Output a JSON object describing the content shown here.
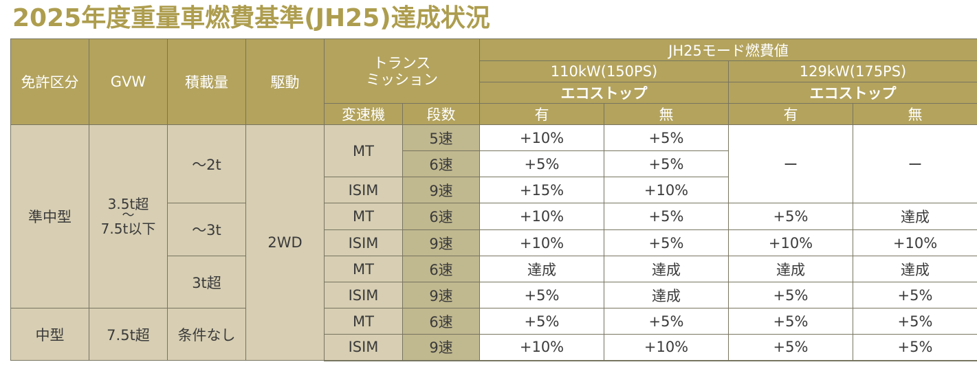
{
  "title": "2025年度重量車燃費基準(JH25)達成状況",
  "headers": {
    "license": "免許区分",
    "gvw": "GVW",
    "load": "積載量",
    "drive": "駆動",
    "transmission_line1": "トランス",
    "transmission_line2": "ミッション",
    "gearbox": "変速機",
    "gears": "段数",
    "fuel_group": "JH25モード燃費値",
    "engine1": "110kW(150PS)",
    "engine2": "129kW(175PS)",
    "ecostop": "エコストップ",
    "with": "有",
    "without": "無"
  },
  "groups": {
    "jun_chugata": "準中型",
    "chugata": "中型",
    "gvw_range_line1": "3.5t超",
    "gvw_range_tilde": "〜",
    "gvw_range_line2": "7.5t以下",
    "gvw_over": "7.5t超",
    "load_2t": "〜2t",
    "load_3t": "〜3t",
    "load_over3t": "3t超",
    "load_none": "条件なし",
    "drive": "2WD",
    "dash": "ー"
  },
  "rows": [
    {
      "trans": "MT",
      "gears": "5速",
      "e1_on": "+10%",
      "e1_off": "+5%",
      "e2_on": "",
      "e2_off": ""
    },
    {
      "trans": "",
      "gears": "6速",
      "e1_on": "+5%",
      "e1_off": "+5%",
      "e2_on": "",
      "e2_off": ""
    },
    {
      "trans": "ISIM",
      "gears": "9速",
      "e1_on": "+15%",
      "e1_off": "+10%",
      "e2_on": "",
      "e2_off": ""
    },
    {
      "trans": "MT",
      "gears": "6速",
      "e1_on": "+10%",
      "e1_off": "+5%",
      "e2_on": "+5%",
      "e2_off": "達成"
    },
    {
      "trans": "ISIM",
      "gears": "9速",
      "e1_on": "+10%",
      "e1_off": "+5%",
      "e2_on": "+10%",
      "e2_off": "+10%"
    },
    {
      "trans": "MT",
      "gears": "6速",
      "e1_on": "達成",
      "e1_off": "達成",
      "e2_on": "達成",
      "e2_off": "達成"
    },
    {
      "trans": "ISIM",
      "gears": "9速",
      "e1_on": "+5%",
      "e1_off": "達成",
      "e2_on": "+5%",
      "e2_off": "+5%"
    },
    {
      "trans": "MT",
      "gears": "6速",
      "e1_on": "+5%",
      "e1_off": "+5%",
      "e2_on": "+5%",
      "e2_off": "+5%"
    },
    {
      "trans": "ISIM",
      "gears": "9速",
      "e1_on": "+10%",
      "e1_off": "+10%",
      "e2_on": "+5%",
      "e2_off": "+5%"
    }
  ]
}
